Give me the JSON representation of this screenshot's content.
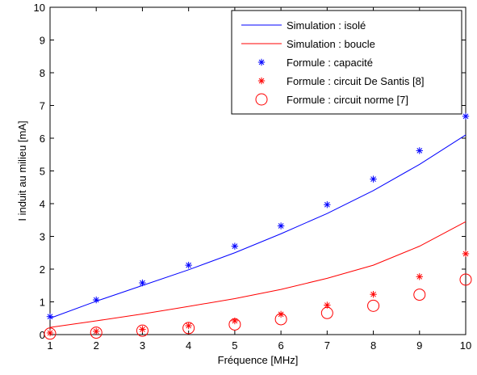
{
  "chart_data": {
    "type": "line",
    "title": "",
    "xlabel": "Fréquence [MHz]",
    "ylabel": "I induit au milieu [mA]",
    "xlim": [
      1,
      10
    ],
    "ylim": [
      0,
      10
    ],
    "x_ticks": [
      "1",
      "2",
      "3",
      "4",
      "5",
      "6",
      "7",
      "8",
      "9",
      "10"
    ],
    "y_ticks": [
      "0",
      "1",
      "2",
      "3",
      "4",
      "5",
      "6",
      "7",
      "8",
      "9",
      "10"
    ],
    "grid": false,
    "legend_position": "top-right",
    "series": [
      {
        "name": "Simulation : isolé",
        "kind": "line",
        "color": "#0000ff",
        "x": [
          1,
          2,
          3,
          4,
          5,
          6,
          7,
          8,
          9,
          10
        ],
        "values": [
          0.5,
          1.02,
          1.5,
          1.98,
          2.5,
          3.08,
          3.7,
          4.4,
          5.2,
          6.1
        ]
      },
      {
        "name": "Simulation : boucle",
        "kind": "line",
        "color": "#ff0000",
        "x": [
          1,
          2,
          3,
          4,
          5,
          6,
          7,
          8,
          9,
          10
        ],
        "values": [
          0.22,
          0.42,
          0.63,
          0.86,
          1.1,
          1.38,
          1.72,
          2.12,
          2.7,
          3.45
        ]
      },
      {
        "name": "Formule : capacité",
        "kind": "star",
        "color": "#0000ff",
        "x": [
          1,
          2,
          3,
          4,
          5,
          6,
          7,
          8,
          9,
          10
        ],
        "values": [
          0.55,
          1.06,
          1.58,
          2.12,
          2.7,
          3.32,
          3.97,
          4.75,
          5.62,
          6.67
        ]
      },
      {
        "name": "Formule : circuit De Santis [8]",
        "kind": "star",
        "color": "#ff0000",
        "x": [
          1,
          2,
          3,
          4,
          5,
          6,
          7,
          8,
          9,
          10
        ],
        "values": [
          0.05,
          0.1,
          0.16,
          0.27,
          0.42,
          0.62,
          0.9,
          1.23,
          1.77,
          2.47
        ]
      },
      {
        "name": "Formule : circuit norme [7]",
        "kind": "circle",
        "color": "#ff0000",
        "x": [
          1,
          2,
          3,
          4,
          5,
          6,
          7,
          8,
          9,
          10
        ],
        "values": [
          0.03,
          0.06,
          0.12,
          0.2,
          0.31,
          0.47,
          0.66,
          0.88,
          1.22,
          1.68
        ]
      }
    ]
  }
}
